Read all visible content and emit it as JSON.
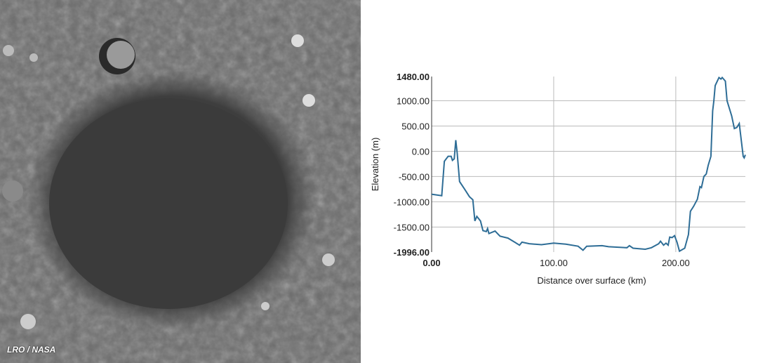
{
  "image": {
    "credit": "LRO / NASA"
  },
  "chart_data": {
    "type": "line",
    "title": "",
    "xlabel": "Distance over surface (km)",
    "ylabel": "Elevation (m)",
    "xlim": [
      0,
      257
    ],
    "ylim": [
      -1996,
      1480
    ],
    "x_ticks": [
      "0.00",
      "100.00",
      "200.00"
    ],
    "x_tick_values": [
      0,
      100,
      200
    ],
    "y_ticks": [
      "1480.00",
      "1000.00",
      "500.00",
      "0.00",
      "-500.00",
      "-1000.00",
      "-1500.00",
      "-1996.00"
    ],
    "y_tick_values": [
      1480,
      1000,
      500,
      0,
      -500,
      -1000,
      -1500,
      -1996
    ],
    "grid": true,
    "line_color": "#2e6d96",
    "series": [
      {
        "x": [
          0,
          8.3,
          10.4,
          13.5,
          16,
          17,
          18.5,
          19.8,
          21,
          22.9,
          27,
          31,
          33.75,
          35.4,
          37,
          40,
          42,
          44.8,
          45.8,
          46.9,
          52,
          56,
          62.5,
          68,
          72,
          74,
          80,
          90,
          100,
          110,
          120,
          124,
          127,
          139.6,
          145,
          160,
          162,
          165,
          175,
          180,
          186,
          187.5,
          190,
          192,
          193.75,
          195,
          197,
          199,
          201,
          203,
          207.3,
          210.4,
          212,
          214.6,
          217.7,
          219.8,
          221,
          223,
          225,
          226.5,
          228.75,
          230.2,
          231.2,
          232.3,
          235.4,
          237,
          238,
          240.6,
          242,
          245.8,
          248,
          250,
          252,
          255.2,
          256,
          257
        ],
        "y": [
          -850,
          -880,
          -200,
          -100,
          -100,
          -180,
          -150,
          220,
          -50,
          -600,
          -750,
          -900,
          -960,
          -1380,
          -1290,
          -1380,
          -1570,
          -1590,
          -1530,
          -1630,
          -1580,
          -1680,
          -1720,
          -1800,
          -1860,
          -1800,
          -1830,
          -1850,
          -1820,
          -1840,
          -1880,
          -1960,
          -1880,
          -1870,
          -1890,
          -1910,
          -1870,
          -1920,
          -1940,
          -1910,
          -1830,
          -1780,
          -1860,
          -1820,
          -1860,
          -1700,
          -1710,
          -1670,
          -1800,
          -1980,
          -1920,
          -1650,
          -1190,
          -1090,
          -950,
          -700,
          -720,
          -500,
          -450,
          -280,
          -100,
          800,
          1000,
          1300,
          1460,
          1430,
          1460,
          1390,
          1000,
          700,
          450,
          470,
          550,
          -100,
          -130,
          -70
        ]
      }
    ]
  }
}
